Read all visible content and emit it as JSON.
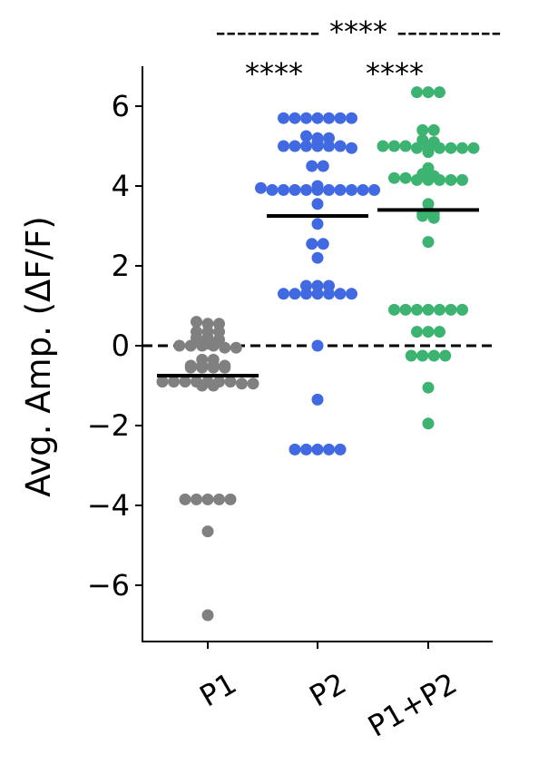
{
  "chart_data": {
    "type": "scatter",
    "subtype": "swarm",
    "title": "",
    "xlabel": "",
    "ylabel": "Avg. Amp. (ΔF/F)",
    "ylim": [
      -7.4,
      7.0
    ],
    "yticks": [
      -6,
      -4,
      -2,
      0,
      2,
      4,
      6
    ],
    "ytick_labels": [
      "−6",
      "−4",
      "−2",
      "0",
      "2",
      "4",
      "6"
    ],
    "categories": [
      "P1",
      "P2",
      "P1+P2"
    ],
    "reference_line": {
      "y": 0,
      "style": "dashed"
    },
    "series": [
      {
        "category": "P1",
        "color": "#808080",
        "mean": -0.75,
        "values": [
          0.6,
          0.55,
          0.55,
          0.35,
          0.35,
          0.35,
          0.2,
          0.2,
          0.15,
          0.05,
          0.0,
          0.0,
          0.0,
          0.0,
          -0.05,
          -0.05,
          -0.35,
          -0.35,
          -0.5,
          -0.5,
          -0.5,
          -0.5,
          -0.55,
          -0.55,
          -0.55,
          -0.55,
          -0.9,
          -0.9,
          -0.9,
          -0.9,
          -0.9,
          -0.9,
          -0.9,
          -0.95,
          -0.95,
          -1.0,
          -1.0,
          -3.85,
          -3.85,
          -3.85,
          -3.85,
          -3.85,
          -4.65,
          -6.75
        ]
      },
      {
        "category": "P2",
        "color": "#4169e1",
        "mean": 3.25,
        "values": [
          5.7,
          5.7,
          5.7,
          5.7,
          5.7,
          5.7,
          5.7,
          5.25,
          5.2,
          5.2,
          5.1,
          5.0,
          5.0,
          5.0,
          5.0,
          5.0,
          5.0,
          4.95,
          4.5,
          4.5,
          4.0,
          3.95,
          3.9,
          3.9,
          3.9,
          3.9,
          3.9,
          3.9,
          3.9,
          3.9,
          3.9,
          3.9,
          3.55,
          3.05,
          2.55,
          2.55,
          2.2,
          1.5,
          1.5,
          1.5,
          1.3,
          1.3,
          1.3,
          1.3,
          1.3,
          1.3,
          1.3,
          0.0,
          -1.35,
          -2.6,
          -2.6,
          -2.6,
          -2.6,
          -2.6
        ]
      },
      {
        "category": "P1+P2",
        "color": "#3cb371",
        "mean": 3.4,
        "values": [
          6.35,
          6.35,
          6.35,
          5.4,
          5.4,
          5.15,
          5.1,
          5.0,
          5.0,
          5.0,
          4.95,
          4.95,
          4.95,
          4.95,
          4.95,
          4.95,
          4.85,
          4.45,
          4.3,
          4.25,
          4.2,
          4.2,
          4.15,
          4.15,
          4.15,
          4.15,
          4.15,
          3.55,
          3.3,
          3.3,
          3.25,
          3.2,
          2.6,
          0.9,
          0.9,
          0.9,
          0.9,
          0.9,
          0.9,
          0.9,
          0.35,
          0.35,
          0.35,
          -0.25,
          -0.25,
          -0.25,
          -0.25,
          -1.05,
          -1.95
        ]
      }
    ],
    "annotations": {
      "top_bracket": "---------- **** ----------",
      "p2_vs_p1": "****",
      "p1p2_vs_p1": "****"
    }
  }
}
